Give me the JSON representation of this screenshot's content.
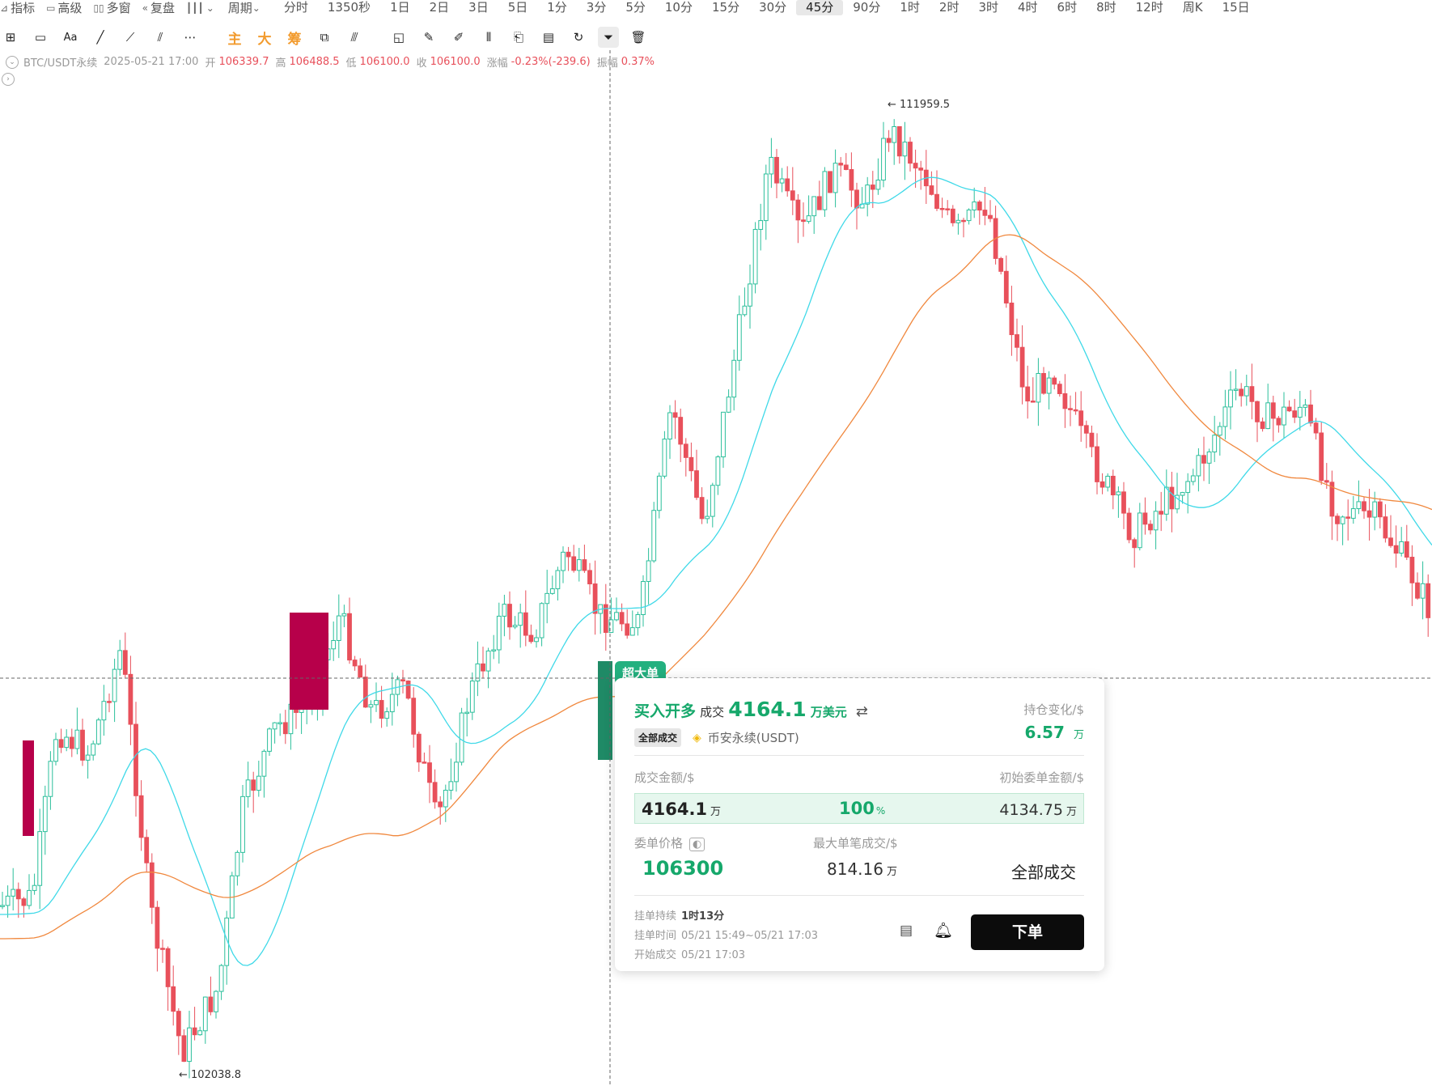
{
  "toolbar": {
    "tools": [
      {
        "icon": "indicator-icon",
        "label": "指标"
      },
      {
        "icon": "advanced-icon",
        "label": "高级"
      },
      {
        "icon": "multi-window-icon",
        "label": "多窗"
      },
      {
        "icon": "replay-icon",
        "label": "复盘"
      }
    ],
    "chart_type_icon": "candlestick-icon",
    "period_label": "周期",
    "periods": [
      "分时",
      "1350秒",
      "1日",
      "2日",
      "3日",
      "5日",
      "1分",
      "3分",
      "5分",
      "10分",
      "15分",
      "30分",
      "45分",
      "90分",
      "1时",
      "2时",
      "3时",
      "4时",
      "6时",
      "8时",
      "12时",
      "周K",
      "15日"
    ],
    "active_period": "45分"
  },
  "drawing_tools": {
    "tools": [
      "crosshair-icon",
      "rectangle-icon",
      "text-icon",
      "line-icon",
      "ray-icon",
      "fib-icon",
      "more-icon"
    ],
    "indicators": [
      "主",
      "大",
      "筹"
    ],
    "tools2": [
      "magnet-icon",
      "measure-icon",
      "ruler-icon",
      "eraser-icon",
      "compare-icon",
      "lock-icon",
      "note-icon",
      "visibility-icon",
      "filter-icon",
      "trash-icon"
    ],
    "text_tool_label": "Aa"
  },
  "ohlc": {
    "symbol": "BTC/USDT永续",
    "datetime": "2025-05-21 17:00",
    "open_label": "开",
    "open": "106339.7",
    "high_label": "高",
    "high": "106488.5",
    "low_label": "低",
    "low": "106100.0",
    "close_label": "收",
    "close": "106100.0",
    "change_label": "涨幅",
    "change": "-0.23%(-239.6)",
    "amp_label": "振幅",
    "amp": "0.37%"
  },
  "chart_marks": {
    "high_mark": "111959.5",
    "low_mark": "102038.8"
  },
  "colors": {
    "up": "#2bbf9b",
    "down": "#e8505b",
    "ma_fast": "#3fd9e8",
    "ma_slow": "#f0883e",
    "block": "#b7004a",
    "green_block": "#1f8a66",
    "accent_green": "#16a86b"
  },
  "chart_data": {
    "type": "candlestick",
    "high": 111959.5,
    "low": 102038.8,
    "candles_description": "45分 BTC/USDT永续 K线",
    "ma_series": [
      "ma_fast",
      "ma_slow"
    ]
  },
  "panel": {
    "badge": "超大单",
    "side": "买入开多",
    "deal_label": "成交",
    "amount": "4164.1",
    "amount_unit": "万美元",
    "swap_icon": "swap-icon",
    "tag": "全部成交",
    "exchange_icon": "binance-icon",
    "exchange": "币安永续(USDT)",
    "oi_label": "持仓变化/$",
    "oi_value": "6.57",
    "oi_unit": "万",
    "deal_amount_label": "成交金额/$",
    "init_amount_label": "初始委单金额/$",
    "bar_left": "4164.1",
    "bar_left_unit": "万",
    "bar_pct": "100",
    "bar_pct_unit": "%",
    "bar_right": "4134.75",
    "bar_right_unit": "万",
    "order_price_label": "委单价格",
    "order_price": "106300",
    "max_fill_label": "最大单笔成交/$",
    "max_fill": "814.16",
    "max_fill_unit": "万",
    "status": "全部成交",
    "duration_label": "挂单持续",
    "duration": "1时13分",
    "pending_label": "挂单时间",
    "pending": "05/21 15:49~05/21 17:03",
    "start_label": "开始成交",
    "start": "05/21 17:03",
    "order_button": "下单"
  }
}
